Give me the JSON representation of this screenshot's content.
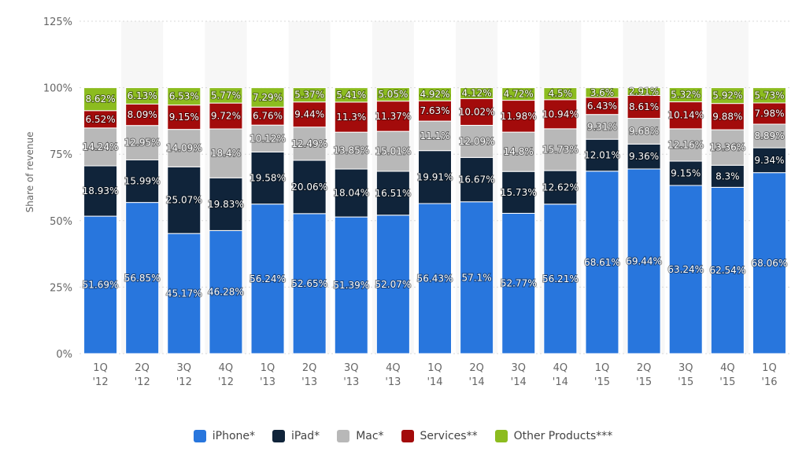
{
  "chart_data": {
    "type": "bar",
    "stacked": true,
    "ylabel": "Share of revenue",
    "xlabel": "",
    "ylim": [
      0,
      125
    ],
    "yticks": [
      "0%",
      "25%",
      "50%",
      "75%",
      "100%",
      "125%"
    ],
    "grid": true,
    "legend_position": "bottom",
    "categories": [
      [
        "1Q",
        "'12"
      ],
      [
        "2Q",
        "'12"
      ],
      [
        "3Q",
        "'12"
      ],
      [
        "4Q",
        "'12"
      ],
      [
        "1Q",
        "'13"
      ],
      [
        "2Q",
        "'13"
      ],
      [
        "3Q",
        "'13"
      ],
      [
        "4Q",
        "'13"
      ],
      [
        "1Q",
        "'14"
      ],
      [
        "2Q",
        "'14"
      ],
      [
        "3Q",
        "'14"
      ],
      [
        "4Q",
        "'14"
      ],
      [
        "1Q",
        "'15"
      ],
      [
        "2Q",
        "'15"
      ],
      [
        "3Q",
        "'15"
      ],
      [
        "4Q",
        "'15"
      ],
      [
        "1Q",
        "'16"
      ]
    ],
    "series": [
      {
        "name": "iPhone*",
        "color": "#2876dd",
        "values": [
          51.69,
          56.85,
          45.17,
          46.28,
          56.24,
          52.65,
          51.39,
          52.07,
          56.43,
          57.1,
          52.77,
          56.21,
          68.61,
          69.44,
          63.24,
          62.54,
          68.06
        ]
      },
      {
        "name": "iPad*",
        "color": "#10243a",
        "values": [
          18.93,
          15.99,
          25.07,
          19.83,
          19.58,
          20.06,
          18.04,
          16.51,
          19.91,
          16.67,
          15.73,
          12.62,
          12.01,
          9.36,
          9.15,
          8.3,
          9.34
        ]
      },
      {
        "name": "Mac*",
        "color": "#b8b8b8",
        "values": [
          14.24,
          12.95,
          14.09,
          18.4,
          10.12,
          12.49,
          13.85,
          15.01,
          11.1,
          12.09,
          14.8,
          15.73,
          9.31,
          9.68,
          12.16,
          13.36,
          8.89
        ]
      },
      {
        "name": "Services**",
        "color": "#a30b0b",
        "values": [
          6.52,
          8.09,
          9.15,
          9.72,
          6.76,
          9.44,
          11.3,
          11.37,
          7.63,
          10.02,
          11.98,
          10.94,
          6.43,
          8.61,
          10.14,
          9.88,
          7.98
        ]
      },
      {
        "name": "Other Products***",
        "color": "#8cbc1f",
        "values": [
          8.62,
          6.13,
          6.53,
          5.77,
          7.29,
          5.37,
          5.41,
          5.05,
          4.92,
          4.12,
          4.72,
          4.5,
          3.6,
          2.91,
          5.32,
          5.92,
          5.73
        ]
      }
    ]
  }
}
